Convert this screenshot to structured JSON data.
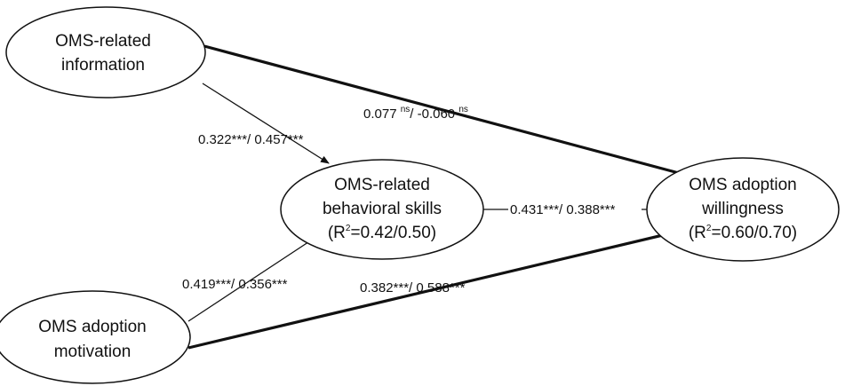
{
  "nodes": {
    "info": {
      "line1": "OMS-related",
      "line2": "information"
    },
    "motivation": {
      "line1": "OMS adoption",
      "line2": "motivation"
    },
    "skills": {
      "line1": "OMS-related",
      "line2": "behavioral skills",
      "r2_prefix": "(R",
      "r2_sup": "2",
      "r2_suffix": "=0.42/0.50)"
    },
    "willingness": {
      "line1": "OMS adoption",
      "line2": "willingness",
      "r2_prefix": "(R",
      "r2_sup": "2",
      "r2_suffix": "=0.60/0.70)"
    }
  },
  "edges": {
    "info_to_skills": "0.322***/ 0.457***",
    "info_to_willingness": {
      "a": "0.077 ",
      "a_sup": "ns",
      "b": "/ -0.060 ",
      "b_sup": "ns"
    },
    "motivation_to_skills": "0.419***/ 0.356***",
    "motivation_to_willingness": "0.382***/ 0.588***",
    "skills_to_willingness": "0.431***/ 0.388***"
  },
  "colors": {
    "stroke": "#111111",
    "background": "#ffffff"
  }
}
